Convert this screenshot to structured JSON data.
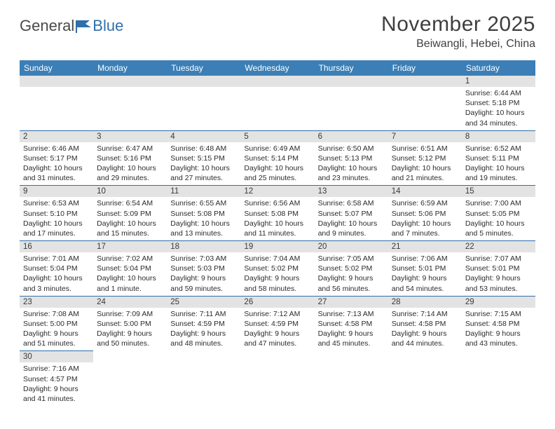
{
  "logo": {
    "text1": "General",
    "text2": "Blue"
  },
  "title": "November 2025",
  "location": "Beiwangli, Hebei, China",
  "colors": {
    "header_bg": "#3b7fb6",
    "header_text": "#ffffff",
    "daynum_bg": "#e3e3e3",
    "cell_border": "#2f6fab",
    "body_text": "#2b2b2b"
  },
  "typography": {
    "title_fontsize": 30,
    "location_fontsize": 16,
    "dayhead_fontsize": 12,
    "daynum_fontsize": 11.5,
    "body_fontsize": 10.5
  },
  "day_headers": [
    "Sunday",
    "Monday",
    "Tuesday",
    "Wednesday",
    "Thursday",
    "Friday",
    "Saturday"
  ],
  "weeks": [
    [
      {
        "blank": true
      },
      {
        "blank": true
      },
      {
        "blank": true
      },
      {
        "blank": true
      },
      {
        "blank": true
      },
      {
        "blank": true
      },
      {
        "n": "1",
        "sunrise": "Sunrise: 6:44 AM",
        "sunset": "Sunset: 5:18 PM",
        "daylight1": "Daylight: 10 hours",
        "daylight2": "and 34 minutes."
      }
    ],
    [
      {
        "n": "2",
        "sunrise": "Sunrise: 6:46 AM",
        "sunset": "Sunset: 5:17 PM",
        "daylight1": "Daylight: 10 hours",
        "daylight2": "and 31 minutes."
      },
      {
        "n": "3",
        "sunrise": "Sunrise: 6:47 AM",
        "sunset": "Sunset: 5:16 PM",
        "daylight1": "Daylight: 10 hours",
        "daylight2": "and 29 minutes."
      },
      {
        "n": "4",
        "sunrise": "Sunrise: 6:48 AM",
        "sunset": "Sunset: 5:15 PM",
        "daylight1": "Daylight: 10 hours",
        "daylight2": "and 27 minutes."
      },
      {
        "n": "5",
        "sunrise": "Sunrise: 6:49 AM",
        "sunset": "Sunset: 5:14 PM",
        "daylight1": "Daylight: 10 hours",
        "daylight2": "and 25 minutes."
      },
      {
        "n": "6",
        "sunrise": "Sunrise: 6:50 AM",
        "sunset": "Sunset: 5:13 PM",
        "daylight1": "Daylight: 10 hours",
        "daylight2": "and 23 minutes."
      },
      {
        "n": "7",
        "sunrise": "Sunrise: 6:51 AM",
        "sunset": "Sunset: 5:12 PM",
        "daylight1": "Daylight: 10 hours",
        "daylight2": "and 21 minutes."
      },
      {
        "n": "8",
        "sunrise": "Sunrise: 6:52 AM",
        "sunset": "Sunset: 5:11 PM",
        "daylight1": "Daylight: 10 hours",
        "daylight2": "and 19 minutes."
      }
    ],
    [
      {
        "n": "9",
        "sunrise": "Sunrise: 6:53 AM",
        "sunset": "Sunset: 5:10 PM",
        "daylight1": "Daylight: 10 hours",
        "daylight2": "and 17 minutes."
      },
      {
        "n": "10",
        "sunrise": "Sunrise: 6:54 AM",
        "sunset": "Sunset: 5:09 PM",
        "daylight1": "Daylight: 10 hours",
        "daylight2": "and 15 minutes."
      },
      {
        "n": "11",
        "sunrise": "Sunrise: 6:55 AM",
        "sunset": "Sunset: 5:08 PM",
        "daylight1": "Daylight: 10 hours",
        "daylight2": "and 13 minutes."
      },
      {
        "n": "12",
        "sunrise": "Sunrise: 6:56 AM",
        "sunset": "Sunset: 5:08 PM",
        "daylight1": "Daylight: 10 hours",
        "daylight2": "and 11 minutes."
      },
      {
        "n": "13",
        "sunrise": "Sunrise: 6:58 AM",
        "sunset": "Sunset: 5:07 PM",
        "daylight1": "Daylight: 10 hours",
        "daylight2": "and 9 minutes."
      },
      {
        "n": "14",
        "sunrise": "Sunrise: 6:59 AM",
        "sunset": "Sunset: 5:06 PM",
        "daylight1": "Daylight: 10 hours",
        "daylight2": "and 7 minutes."
      },
      {
        "n": "15",
        "sunrise": "Sunrise: 7:00 AM",
        "sunset": "Sunset: 5:05 PM",
        "daylight1": "Daylight: 10 hours",
        "daylight2": "and 5 minutes."
      }
    ],
    [
      {
        "n": "16",
        "sunrise": "Sunrise: 7:01 AM",
        "sunset": "Sunset: 5:04 PM",
        "daylight1": "Daylight: 10 hours",
        "daylight2": "and 3 minutes."
      },
      {
        "n": "17",
        "sunrise": "Sunrise: 7:02 AM",
        "sunset": "Sunset: 5:04 PM",
        "daylight1": "Daylight: 10 hours",
        "daylight2": "and 1 minute."
      },
      {
        "n": "18",
        "sunrise": "Sunrise: 7:03 AM",
        "sunset": "Sunset: 5:03 PM",
        "daylight1": "Daylight: 9 hours",
        "daylight2": "and 59 minutes."
      },
      {
        "n": "19",
        "sunrise": "Sunrise: 7:04 AM",
        "sunset": "Sunset: 5:02 PM",
        "daylight1": "Daylight: 9 hours",
        "daylight2": "and 58 minutes."
      },
      {
        "n": "20",
        "sunrise": "Sunrise: 7:05 AM",
        "sunset": "Sunset: 5:02 PM",
        "daylight1": "Daylight: 9 hours",
        "daylight2": "and 56 minutes."
      },
      {
        "n": "21",
        "sunrise": "Sunrise: 7:06 AM",
        "sunset": "Sunset: 5:01 PM",
        "daylight1": "Daylight: 9 hours",
        "daylight2": "and 54 minutes."
      },
      {
        "n": "22",
        "sunrise": "Sunrise: 7:07 AM",
        "sunset": "Sunset: 5:01 PM",
        "daylight1": "Daylight: 9 hours",
        "daylight2": "and 53 minutes."
      }
    ],
    [
      {
        "n": "23",
        "sunrise": "Sunrise: 7:08 AM",
        "sunset": "Sunset: 5:00 PM",
        "daylight1": "Daylight: 9 hours",
        "daylight2": "and 51 minutes."
      },
      {
        "n": "24",
        "sunrise": "Sunrise: 7:09 AM",
        "sunset": "Sunset: 5:00 PM",
        "daylight1": "Daylight: 9 hours",
        "daylight2": "and 50 minutes."
      },
      {
        "n": "25",
        "sunrise": "Sunrise: 7:11 AM",
        "sunset": "Sunset: 4:59 PM",
        "daylight1": "Daylight: 9 hours",
        "daylight2": "and 48 minutes."
      },
      {
        "n": "26",
        "sunrise": "Sunrise: 7:12 AM",
        "sunset": "Sunset: 4:59 PM",
        "daylight1": "Daylight: 9 hours",
        "daylight2": "and 47 minutes."
      },
      {
        "n": "27",
        "sunrise": "Sunrise: 7:13 AM",
        "sunset": "Sunset: 4:58 PM",
        "daylight1": "Daylight: 9 hours",
        "daylight2": "and 45 minutes."
      },
      {
        "n": "28",
        "sunrise": "Sunrise: 7:14 AM",
        "sunset": "Sunset: 4:58 PM",
        "daylight1": "Daylight: 9 hours",
        "daylight2": "and 44 minutes."
      },
      {
        "n": "29",
        "sunrise": "Sunrise: 7:15 AM",
        "sunset": "Sunset: 4:58 PM",
        "daylight1": "Daylight: 9 hours",
        "daylight2": "and 43 minutes."
      }
    ],
    [
      {
        "n": "30",
        "sunrise": "Sunrise: 7:16 AM",
        "sunset": "Sunset: 4:57 PM",
        "daylight1": "Daylight: 9 hours",
        "daylight2": "and 41 minutes."
      },
      {
        "blank": true
      },
      {
        "blank": true
      },
      {
        "blank": true
      },
      {
        "blank": true
      },
      {
        "blank": true
      },
      {
        "blank": true
      }
    ]
  ]
}
